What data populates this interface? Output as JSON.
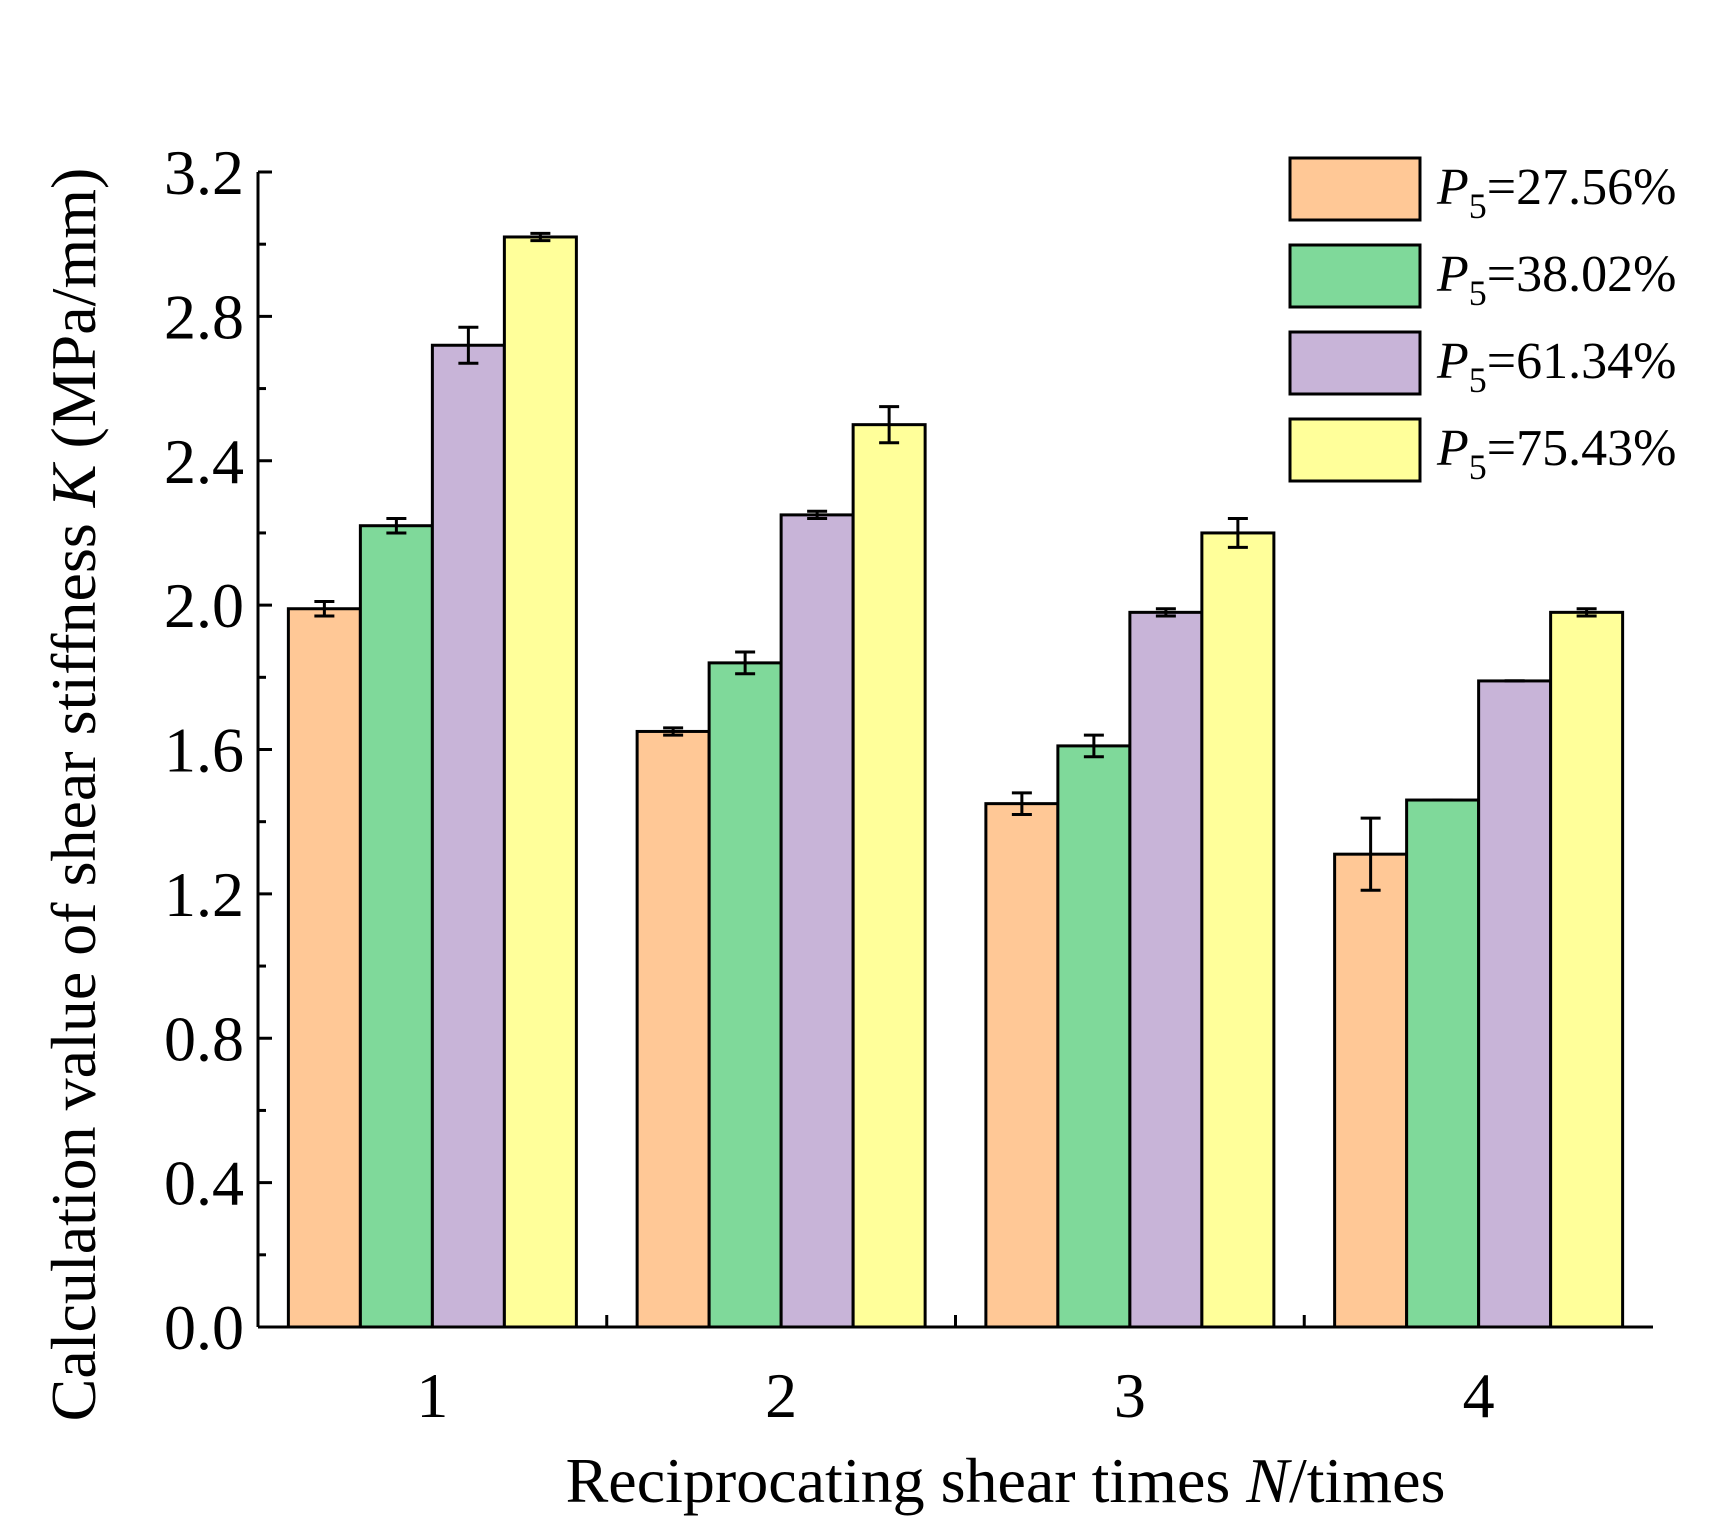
{
  "chart_data": {
    "type": "bar",
    "categories": [
      "1",
      "2",
      "3",
      "4"
    ],
    "series": [
      {
        "name": "=27.56%",
        "color": "#FFC896",
        "values": [
          1.99,
          1.65,
          1.45,
          1.31
        ],
        "errors": [
          0.02,
          0.01,
          0.03,
          0.1
        ]
      },
      {
        "name": "=38.02%",
        "color": "#7FD99A",
        "values": [
          2.22,
          1.84,
          1.61,
          1.46
        ],
        "errors": [
          0.02,
          0.03,
          0.03,
          0.0
        ]
      },
      {
        "name": "=61.34%",
        "color": "#C8B4D8",
        "values": [
          2.72,
          2.25,
          1.98,
          1.79
        ],
        "errors": [
          0.05,
          0.01,
          0.01,
          0.0
        ]
      },
      {
        "name": "=75.43%",
        "color": "#FFFF9A",
        "values": [
          3.02,
          2.5,
          2.2,
          1.98
        ],
        "errors": [
          0.01,
          0.05,
          0.04,
          0.01
        ]
      }
    ],
    "legend_symbol": "P",
    "legend_subscript": "5",
    "ylim": [
      0,
      3.2
    ],
    "yticks": [
      "0.0",
      "0.4",
      "0.8",
      "1.2",
      "1.6",
      "2.0",
      "2.4",
      "2.8",
      "3.2"
    ],
    "ylabel_pre": "Calculation value of shear stiffness ",
    "ylabel_var": "K",
    "ylabel_post": " (MPa/mm)",
    "xlabel_pre": "Reciprocating shear times ",
    "xlabel_var": "N",
    "xlabel_post": "/times",
    "legend_position": "top-right"
  }
}
